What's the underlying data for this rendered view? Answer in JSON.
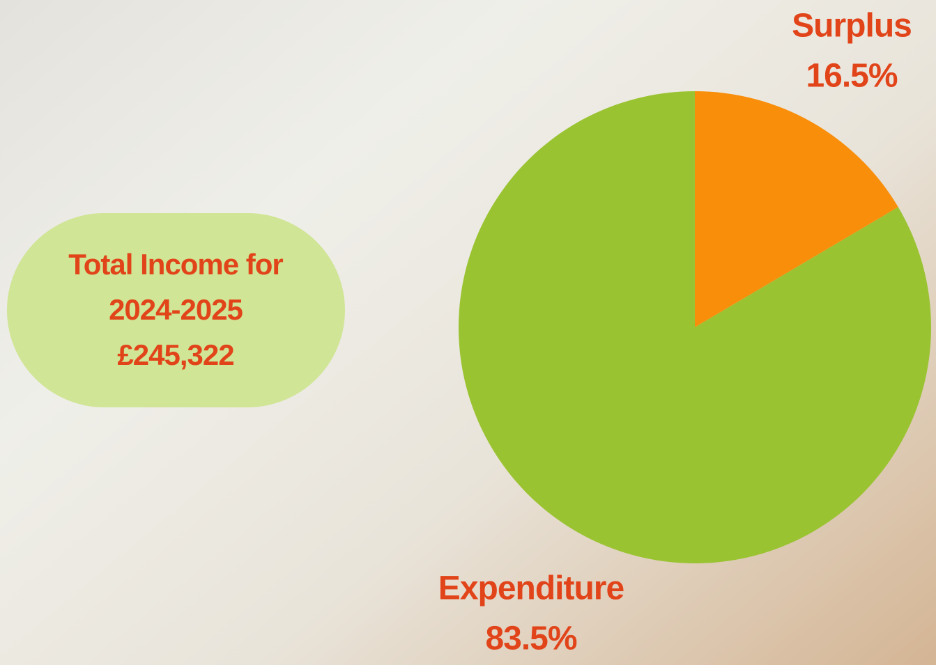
{
  "chart_data": {
    "type": "pie",
    "categories": [
      "Surplus",
      "Expenditure"
    ],
    "values": [
      16.5,
      83.5
    ],
    "value_labels": [
      "16.5%",
      "83.5%"
    ],
    "colors": [
      "#f98e0b",
      "#9ac332"
    ],
    "annotation": [
      "Total Income for",
      "2024-2025",
      "£245,322"
    ]
  }
}
